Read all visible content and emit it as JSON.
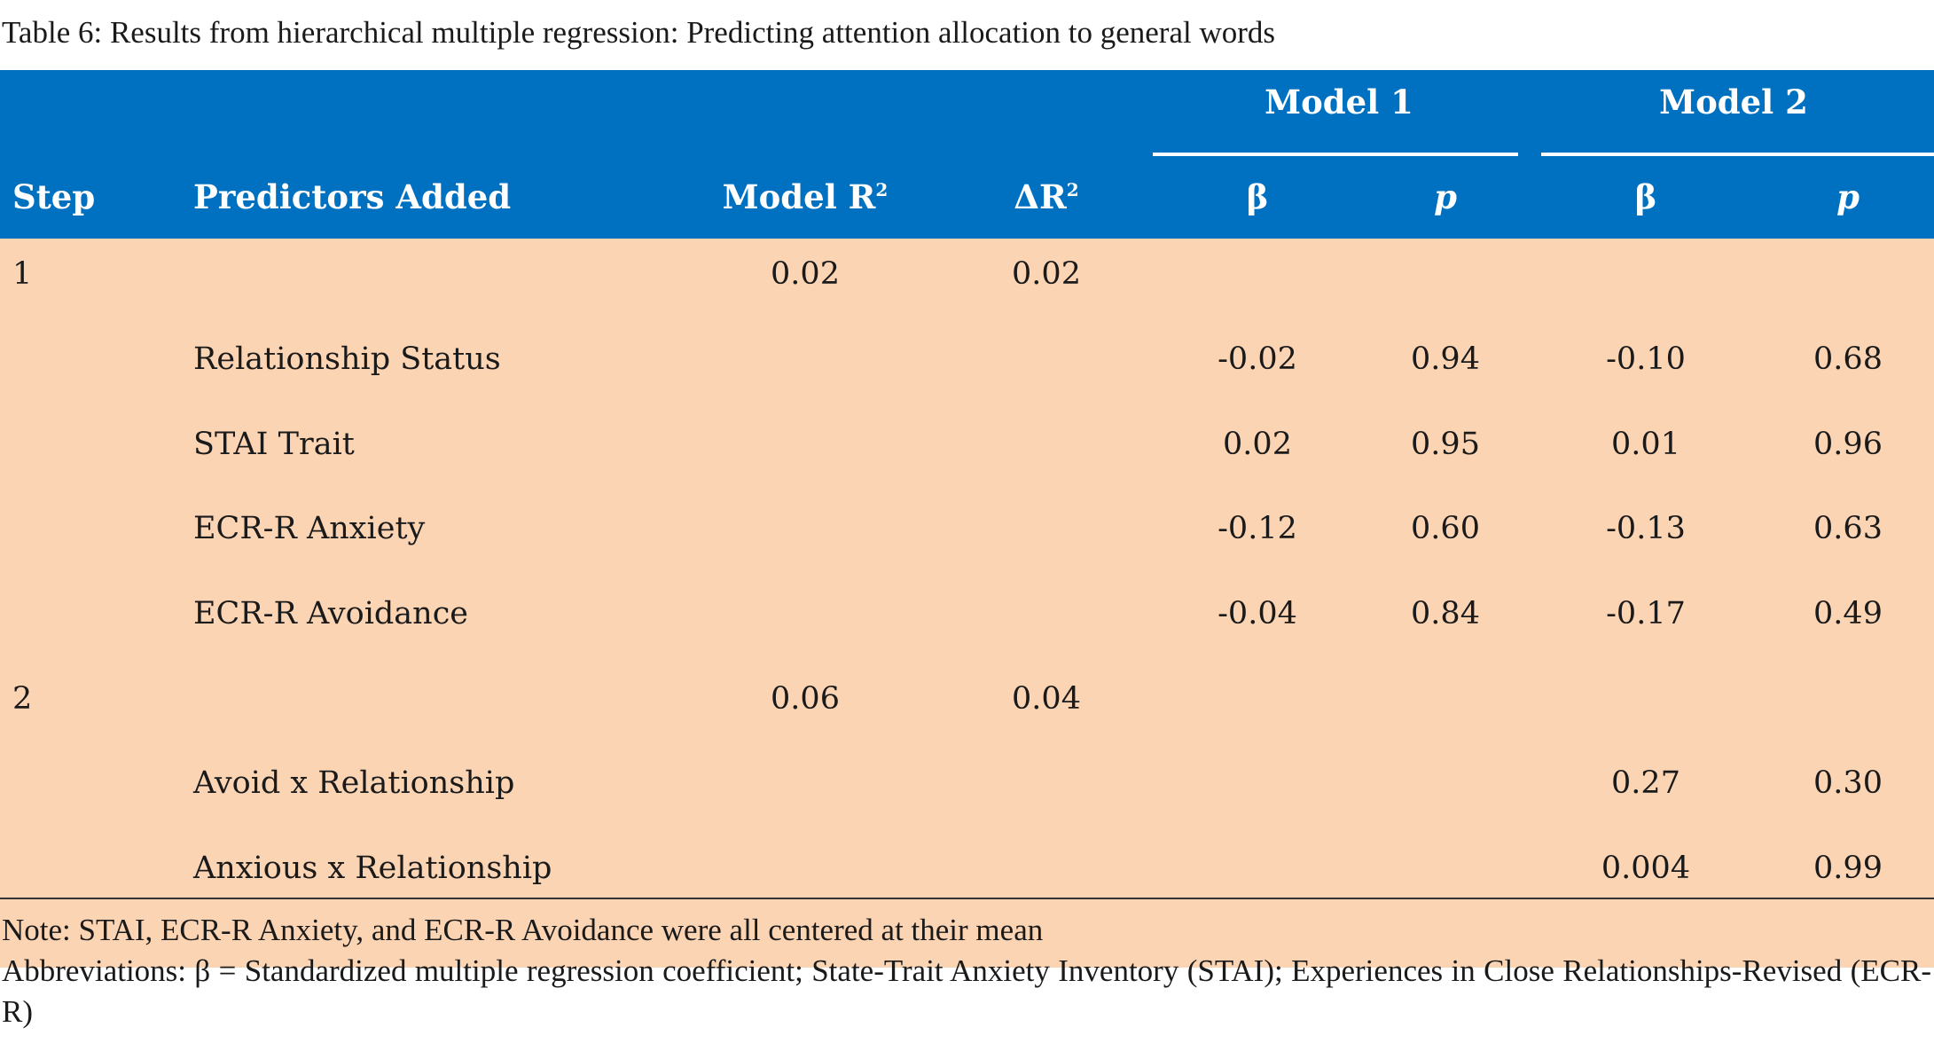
{
  "caption": "Table 6: Results from hierarchical multiple regression: Predicting attention allocation to general words",
  "header": {
    "model1": "Model 1",
    "model2": "Model 2",
    "step": "Step",
    "predictors": "Predictors Added",
    "model_r2_label": "Model R",
    "delta_r2_label": "ΔR",
    "superscript": "2",
    "beta": "β",
    "p": "p"
  },
  "rows": [
    {
      "step": "1",
      "predictor": "",
      "model_r2": "0.02",
      "delta_r2": "0.02",
      "m1_beta": "",
      "m1_p": "",
      "m2_beta": "",
      "m2_p": ""
    },
    {
      "step": "",
      "predictor": "Relationship Status",
      "model_r2": "",
      "delta_r2": "",
      "m1_beta": "-0.02",
      "m1_p": "0.94",
      "m2_beta": "-0.10",
      "m2_p": "0.68"
    },
    {
      "step": "",
      "predictor": "STAI Trait",
      "model_r2": "",
      "delta_r2": "",
      "m1_beta": "0.02",
      "m1_p": "0.95",
      "m2_beta": "0.01",
      "m2_p": "0.96"
    },
    {
      "step": "",
      "predictor": "ECR-R Anxiety",
      "model_r2": "",
      "delta_r2": "",
      "m1_beta": "-0.12",
      "m1_p": "0.60",
      "m2_beta": "-0.13",
      "m2_p": "0.63"
    },
    {
      "step": "",
      "predictor": "ECR-R Avoidance",
      "model_r2": "",
      "delta_r2": "",
      "m1_beta": "-0.04",
      "m1_p": "0.84",
      "m2_beta": "-0.17",
      "m2_p": "0.49"
    },
    {
      "step": "2",
      "predictor": "",
      "model_r2": "0.06",
      "delta_r2": "0.04",
      "m1_beta": "",
      "m1_p": "",
      "m2_beta": "",
      "m2_p": ""
    },
    {
      "step": "",
      "predictor": "Avoid x Relationship",
      "model_r2": "",
      "delta_r2": "",
      "m1_beta": "",
      "m1_p": "",
      "m2_beta": "0.27",
      "m2_p": "0.30"
    },
    {
      "step": "",
      "predictor": "Anxious x Relationship",
      "model_r2": "",
      "delta_r2": "",
      "m1_beta": "",
      "m1_p": "",
      "m2_beta": "0.004",
      "m2_p": "0.99"
    }
  ],
  "notes": {
    "note": "Note: STAI, ECR-R Anxiety, and ECR-R Avoidance were all centered at their mean",
    "abbreviations": "Abbreviations: β = Standardized multiple regression coefficient; State-Trait Anxiety Inventory (STAI); Experiences in Close Relationships-Revised (ECR-R)"
  },
  "colors": {
    "header_bg": "#0070C0",
    "body_bg": "#FBD4B4"
  }
}
